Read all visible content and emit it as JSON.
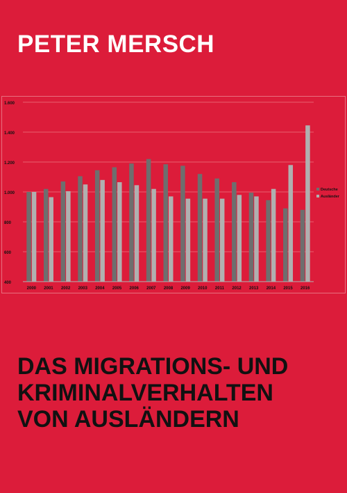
{
  "cover": {
    "author": "PETER MERSCH",
    "title_lines": [
      "DAS MIGRATIONS- UND",
      "KRIMINALVERHALTEN",
      "VON AUSLÄNDERN"
    ],
    "background_color": "#dc1c3a"
  },
  "chart_data": {
    "type": "bar",
    "categories": [
      "2000",
      "2001",
      "2002",
      "2003",
      "2004",
      "2005",
      "2006",
      "2007",
      "2008",
      "2009",
      "2010",
      "2011",
      "2012",
      "2013",
      "2014",
      "2015",
      "2016"
    ],
    "series": [
      {
        "name": "Deutsche",
        "color": "#6e6e6e",
        "values": [
          1000,
          1020,
          1070,
          1105,
          1145,
          1165,
          1190,
          1220,
          1185,
          1175,
          1120,
          1090,
          1065,
          995,
          945,
          890,
          880
        ]
      },
      {
        "name": "Ausländer",
        "color": "#b0b0b0",
        "values": [
          1000,
          965,
          1005,
          1050,
          1080,
          1065,
          1045,
          1020,
          970,
          955,
          955,
          955,
          980,
          970,
          1020,
          1180,
          1445
        ]
      }
    ],
    "yticks": [
      "400",
      "600",
      "800",
      "1.000",
      "1.200",
      "1.400",
      "1.600"
    ],
    "ylim": [
      400,
      1600
    ],
    "grid": true,
    "legend_position": "right",
    "background_color": "#dc1c3a"
  }
}
